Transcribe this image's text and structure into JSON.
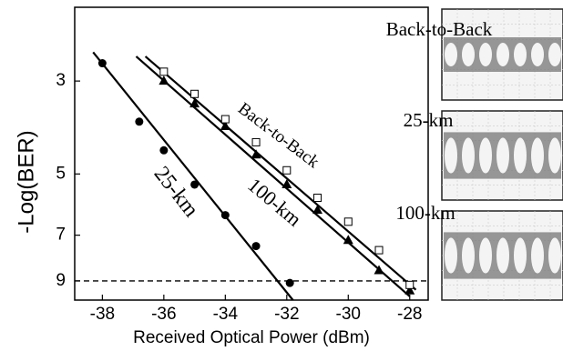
{
  "chart_data": {
    "type": "scatter",
    "xlabel": "Received Optical Power (dBm)",
    "ylabel": "-Log(BER)",
    "xlim": [
      -38.9,
      -27.4
    ],
    "xticks": [
      -38,
      -36,
      -34,
      -32,
      -30,
      -28
    ],
    "ylim": [
      2,
      10
    ],
    "yticks": [
      3,
      5,
      7,
      9
    ],
    "y_log": true,
    "y_reversed": true,
    "threshold": 9,
    "series": [
      {
        "name": "25-km",
        "marker": "circle",
        "color": "#000000",
        "x": [
          -38,
          -36.8,
          -36,
          -35,
          -34,
          -33,
          -31.9
        ],
        "values": [
          2.72,
          3.75,
          4.39,
          5.3,
          6.27,
          7.43,
          9.1
        ],
        "fit_x": [
          -38.3,
          -31.8
        ],
        "fit_values": [
          2.56,
          10
        ]
      },
      {
        "name": "100-km",
        "marker": "triangle",
        "color": "#000000",
        "x": [
          -36,
          -35,
          -34,
          -33,
          -32,
          -31,
          -30,
          -29,
          -28
        ],
        "values": [
          3.0,
          3.4,
          3.85,
          4.5,
          5.3,
          6.1,
          7.2,
          8.5,
          9.5
        ],
        "fit_x": [
          -36.9,
          -28.0
        ],
        "fit_values": [
          2.62,
          9.8
        ]
      },
      {
        "name": "Back-to-Back",
        "marker": "square",
        "color": "#000000",
        "x": [
          -36,
          -35,
          -34,
          -33,
          -32,
          -31,
          -30,
          -29,
          -28
        ],
        "values": [
          2.85,
          3.22,
          3.7,
          4.2,
          4.9,
          5.7,
          6.5,
          7.6,
          9.2
        ],
        "fit_x": [
          -36.6,
          -27.8
        ],
        "fit_values": [
          2.62,
          9.45
        ]
      }
    ],
    "insets": [
      "Back-to-Back",
      "25-km",
      "100-km"
    ]
  }
}
